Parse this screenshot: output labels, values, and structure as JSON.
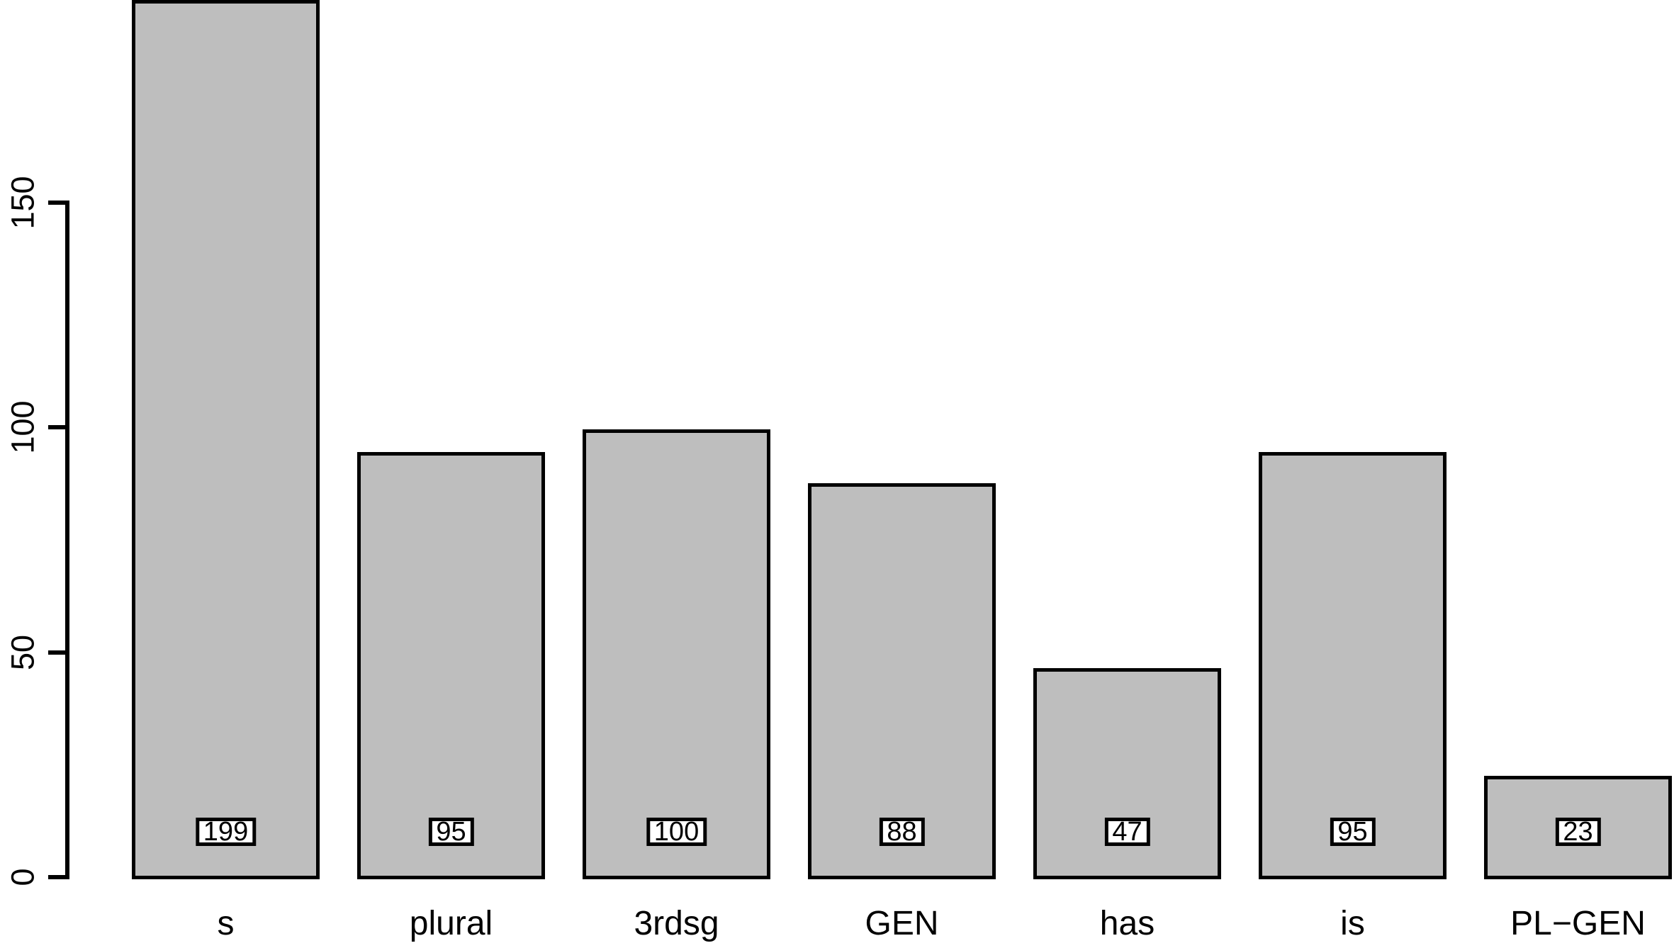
{
  "chart_data": {
    "type": "bar",
    "categories": [
      "s",
      "plural",
      "3rdsg",
      "GEN",
      "has",
      "is",
      "PL−GEN"
    ],
    "values": [
      199,
      95,
      100,
      88,
      47,
      95,
      23
    ],
    "bar_value_labels": [
      "199",
      "95",
      "100",
      "88",
      "47",
      "95",
      "23"
    ],
    "title": "",
    "xlabel": "",
    "ylabel": "",
    "yticks": [
      0,
      50,
      100,
      150
    ],
    "ytick_labels": [
      "0",
      "50",
      "100",
      "150"
    ],
    "ylim": [
      0,
      195
    ],
    "grid": false,
    "legend": null,
    "layout_hints": {
      "y_tick_label_rotation_deg": 90,
      "first_bar_clipped_at_top": true,
      "value_labels_boxed_near_baseline": true
    },
    "colors": {
      "bar_fill": "#bebebe",
      "bar_border": "#000000",
      "axis": "#000000",
      "background": "#ffffff"
    }
  }
}
